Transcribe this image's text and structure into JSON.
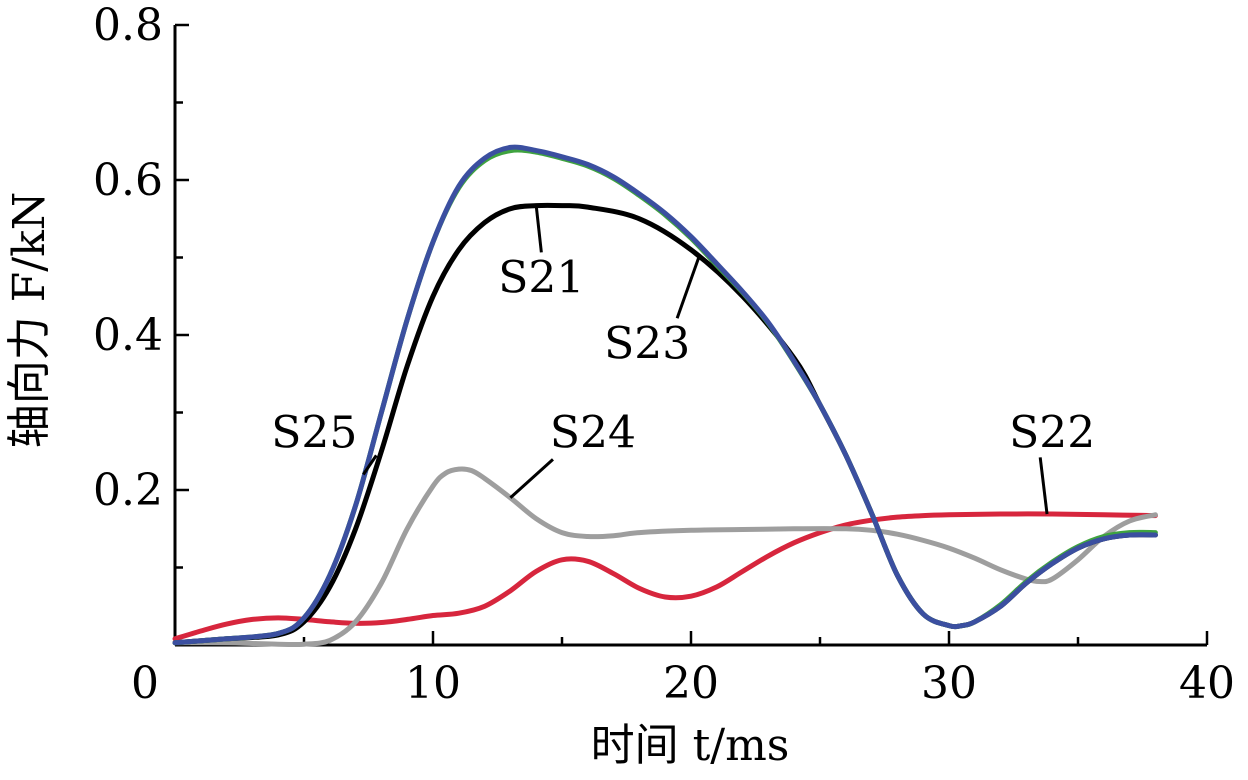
{
  "chart_data": {
    "type": "line",
    "xlabel": "时间 t/ms",
    "ylabel": "轴向力 F/kN",
    "xlim": [
      0,
      40
    ],
    "ylim": [
      0,
      0.8
    ],
    "x_ticks": [
      0,
      10,
      20,
      30,
      40
    ],
    "x_tick_labels": [
      "0",
      "10",
      "20",
      "30",
      "40"
    ],
    "y_ticks": [
      0.2,
      0.4,
      0.6,
      0.8
    ],
    "y_tick_labels": [
      "0.2",
      "0.4",
      "0.6",
      "0.8"
    ],
    "grid": false,
    "series": [
      {
        "name": "S21",
        "color": "#000000",
        "x": [
          0,
          2,
          4,
          5,
          6,
          7,
          8,
          9,
          10,
          11,
          12,
          13,
          14,
          15,
          16,
          18,
          20,
          22,
          24,
          25,
          26,
          27,
          28,
          29,
          30,
          30.5,
          31,
          32,
          33,
          34,
          35,
          36,
          37,
          38
        ],
        "y": [
          0.003,
          0.008,
          0.013,
          0.03,
          0.075,
          0.15,
          0.25,
          0.36,
          0.45,
          0.51,
          0.545,
          0.563,
          0.567,
          0.567,
          0.565,
          0.55,
          0.51,
          0.45,
          0.37,
          0.31,
          0.245,
          0.17,
          0.09,
          0.04,
          0.025,
          0.025,
          0.03,
          0.05,
          0.08,
          0.105,
          0.125,
          0.137,
          0.142,
          0.142
        ]
      },
      {
        "name": "S22",
        "color": "#d7263d",
        "x": [
          0,
          1,
          2,
          3,
          4,
          5,
          6,
          7,
          8,
          9,
          10,
          11,
          12,
          13,
          14,
          15,
          16,
          17,
          18,
          19,
          20,
          21,
          22,
          23,
          24,
          25,
          26,
          27,
          28,
          29,
          30,
          32,
          34,
          36,
          38
        ],
        "y": [
          0.008,
          0.018,
          0.027,
          0.033,
          0.035,
          0.033,
          0.03,
          0.028,
          0.029,
          0.033,
          0.038,
          0.041,
          0.05,
          0.07,
          0.095,
          0.11,
          0.108,
          0.092,
          0.073,
          0.062,
          0.063,
          0.075,
          0.095,
          0.115,
          0.132,
          0.145,
          0.155,
          0.161,
          0.165,
          0.167,
          0.168,
          0.169,
          0.169,
          0.168,
          0.167
        ]
      },
      {
        "name": "S23",
        "color": "#3fa33f",
        "x": [
          0,
          2,
          4,
          5,
          6,
          7,
          8,
          9,
          10,
          11,
          12,
          13,
          14,
          15,
          16,
          17,
          18,
          19,
          20,
          21,
          22,
          23,
          24,
          25,
          26,
          27,
          28,
          29,
          30,
          30.5,
          31,
          32,
          33,
          34,
          35,
          36,
          37,
          38
        ],
        "y": [
          0.003,
          0.008,
          0.015,
          0.035,
          0.09,
          0.18,
          0.3,
          0.42,
          0.52,
          0.59,
          0.625,
          0.638,
          0.636,
          0.628,
          0.618,
          0.602,
          0.58,
          0.555,
          0.525,
          0.49,
          0.455,
          0.415,
          0.365,
          0.31,
          0.245,
          0.17,
          0.09,
          0.04,
          0.025,
          0.025,
          0.03,
          0.052,
          0.082,
          0.107,
          0.127,
          0.14,
          0.145,
          0.145
        ]
      },
      {
        "name": "S24",
        "color": "#9e9e9e",
        "x": [
          0,
          2,
          3,
          4,
          5,
          6,
          7,
          8,
          9,
          10,
          10.5,
          11,
          11.5,
          12,
          13,
          14,
          15,
          16,
          17,
          18,
          20,
          22,
          24,
          26,
          27,
          28,
          29,
          30,
          31,
          32,
          33,
          33.5,
          34,
          35,
          36,
          37,
          38
        ],
        "y": [
          0.003,
          0.003,
          0.002,
          0.001,
          0.001,
          0.006,
          0.03,
          0.08,
          0.15,
          0.205,
          0.222,
          0.227,
          0.225,
          0.215,
          0.19,
          0.163,
          0.145,
          0.14,
          0.141,
          0.145,
          0.148,
          0.149,
          0.15,
          0.15,
          0.148,
          0.143,
          0.135,
          0.125,
          0.112,
          0.097,
          0.085,
          0.082,
          0.085,
          0.11,
          0.14,
          0.16,
          0.168
        ]
      },
      {
        "name": "S25",
        "color": "#3b4fa0",
        "x": [
          0,
          2,
          4,
          5,
          6,
          7,
          8,
          9,
          10,
          11,
          12,
          13,
          14,
          15,
          16,
          17,
          18,
          19,
          20,
          21,
          22,
          23,
          24,
          25,
          26,
          27,
          28,
          29,
          30,
          30.5,
          31,
          32,
          33,
          34,
          35,
          36,
          37,
          38
        ],
        "y": [
          0.003,
          0.008,
          0.015,
          0.035,
          0.09,
          0.18,
          0.3,
          0.42,
          0.52,
          0.592,
          0.628,
          0.642,
          0.638,
          0.63,
          0.62,
          0.604,
          0.582,
          0.557,
          0.527,
          0.492,
          0.456,
          0.416,
          0.366,
          0.31,
          0.245,
          0.17,
          0.09,
          0.04,
          0.025,
          0.025,
          0.03,
          0.05,
          0.08,
          0.105,
          0.125,
          0.137,
          0.142,
          0.142
        ]
      }
    ],
    "annotations": [
      {
        "series": "S21",
        "text": "S21",
        "text_at": [
          14.2,
          0.455
        ],
        "point": [
          14.0,
          0.567
        ]
      },
      {
        "series": "S23",
        "text": "S23",
        "text_at": [
          18.3,
          0.37
        ],
        "point": [
          20.3,
          0.5
        ]
      },
      {
        "series": "S25",
        "text": "S25",
        "text_at": [
          5.4,
          0.255
        ],
        "point": [
          7.3,
          0.22
        ]
      },
      {
        "series": "S24",
        "text": "S24",
        "text_at": [
          16.2,
          0.255
        ],
        "point": [
          13.0,
          0.19
        ]
      },
      {
        "series": "S22",
        "text": "S22",
        "text_at": [
          34.0,
          0.255
        ],
        "point": [
          33.8,
          0.169
        ]
      }
    ]
  }
}
